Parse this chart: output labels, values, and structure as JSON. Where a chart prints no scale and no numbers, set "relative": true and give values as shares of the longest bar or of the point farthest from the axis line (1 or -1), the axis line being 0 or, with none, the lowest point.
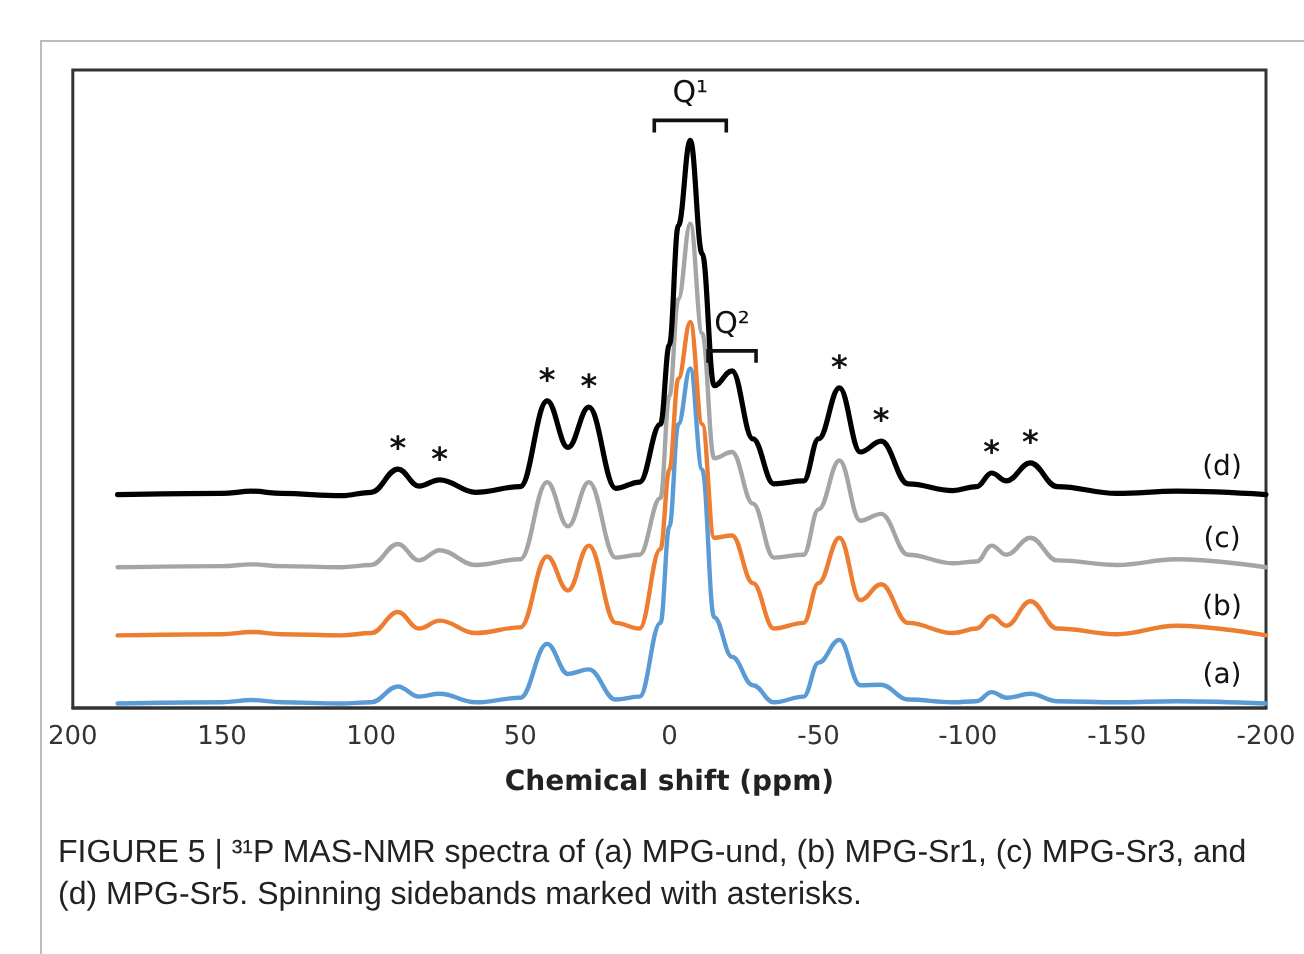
{
  "chart_data": {
    "type": "line",
    "relative": true,
    "xlabel": "Chemical shift (ppm)",
    "xlim": [
      200,
      -200
    ],
    "xticks": [
      200,
      150,
      100,
      50,
      0,
      -50,
      -100,
      -150,
      -200
    ],
    "tick_labels": "x",
    "grid": false,
    "legend": false,
    "marker": "none",
    "line_style": "solid",
    "x": [
      185,
      150,
      140,
      130,
      110,
      100,
      91,
      84,
      77,
      65,
      50,
      41,
      34,
      27,
      18,
      10,
      3,
      0,
      -3,
      -7,
      -11,
      -15,
      -21,
      -28,
      -35,
      -45,
      -50,
      -57,
      -64,
      -71,
      -80,
      -95,
      -103,
      -108,
      -113,
      -121,
      -130,
      -150,
      -170,
      -200
    ],
    "series": [
      {
        "name": "(a)",
        "color": "#5b9bd5",
        "values": [
          0.008,
          0.01,
          0.014,
          0.01,
          0.008,
          0.01,
          0.038,
          0.02,
          0.025,
          0.01,
          0.018,
          0.113,
          0.06,
          0.068,
          0.015,
          0.02,
          0.15,
          0.32,
          0.5,
          0.598,
          0.42,
          0.16,
          0.09,
          0.04,
          0.01,
          0.02,
          0.08,
          0.12,
          0.04,
          0.041,
          0.015,
          0.01,
          0.012,
          0.028,
          0.018,
          0.025,
          0.012,
          0.01,
          0.012,
          0.008
        ]
      },
      {
        "name": "(b)",
        "color": "#ed7d31",
        "values": [
          0.128,
          0.13,
          0.134,
          0.13,
          0.128,
          0.132,
          0.169,
          0.14,
          0.154,
          0.132,
          0.142,
          0.267,
          0.207,
          0.286,
          0.15,
          0.14,
          0.28,
          0.42,
          0.58,
          0.68,
          0.5,
          0.3,
          0.304,
          0.22,
          0.14,
          0.15,
          0.22,
          0.3,
          0.19,
          0.218,
          0.15,
          0.132,
          0.14,
          0.162,
          0.145,
          0.188,
          0.14,
          0.13,
          0.145,
          0.128
        ]
      },
      {
        "name": "(c)",
        "color": "#a5a5a5",
        "values": [
          0.248,
          0.25,
          0.253,
          0.25,
          0.248,
          0.252,
          0.289,
          0.26,
          0.278,
          0.252,
          0.262,
          0.398,
          0.32,
          0.398,
          0.265,
          0.27,
          0.37,
          0.55,
          0.72,
          0.853,
          0.66,
          0.44,
          0.451,
          0.36,
          0.265,
          0.27,
          0.35,
          0.436,
          0.33,
          0.342,
          0.27,
          0.255,
          0.258,
          0.286,
          0.27,
          0.3,
          0.26,
          0.252,
          0.262,
          0.248
        ]
      },
      {
        "name": "(d)",
        "color": "#000000",
        "values": [
          0.376,
          0.378,
          0.382,
          0.378,
          0.374,
          0.38,
          0.421,
          0.391,
          0.402,
          0.38,
          0.39,
          0.541,
          0.459,
          0.53,
          0.387,
          0.398,
          0.5,
          0.64,
          0.85,
          1.0,
          0.8,
          0.568,
          0.594,
          0.474,
          0.395,
          0.4,
          0.474,
          0.564,
          0.451,
          0.47,
          0.395,
          0.383,
          0.39,
          0.414,
          0.4,
          0.432,
          0.39,
          0.378,
          0.382,
          0.376
        ]
      }
    ],
    "annotations": [
      {
        "text": "Q¹",
        "x": -7,
        "y": 1.0
      },
      {
        "text": "Q²",
        "x": -21,
        "y": 0.594
      },
      {
        "text": "*",
        "x": 91,
        "y": 0.421
      },
      {
        "text": "*",
        "x": 77,
        "y": 0.402
      },
      {
        "text": "*",
        "x": 41,
        "y": 0.541
      },
      {
        "text": "*",
        "x": 27,
        "y": 0.53
      },
      {
        "text": "*",
        "x": -57,
        "y": 0.564
      },
      {
        "text": "*",
        "x": -71,
        "y": 0.47
      },
      {
        "text": "*",
        "x": -108,
        "y": 0.414
      },
      {
        "text": "*",
        "x": -121,
        "y": 0.432
      },
      "FIGURE 5 | ³¹P MAS-NMR spectra of (a) MPG-und, (b) MPG-Sr1, (c) MPG-Sr3, and (d) MPG-Sr5. Spinning sidebands marked with asterisks."
    ]
  }
}
